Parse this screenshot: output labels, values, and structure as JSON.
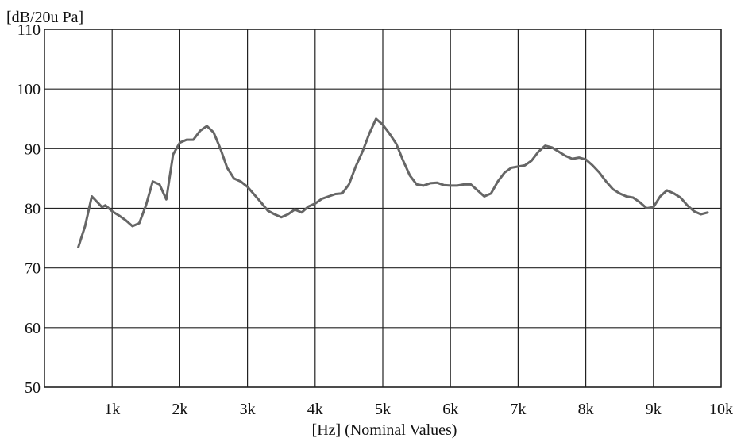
{
  "chart_data": {
    "type": "line",
    "ylabel": "[dB/20u Pa]",
    "xlabel": "[Hz] (Nominal Values)",
    "xlim": [
      0,
      10000
    ],
    "ylim": [
      50,
      110
    ],
    "grid": true,
    "x_ticks": [
      1000,
      2000,
      3000,
      4000,
      5000,
      6000,
      7000,
      8000,
      9000,
      10000
    ],
    "x_tick_labels": [
      "1k",
      "2k",
      "3k",
      "4k",
      "5k",
      "6k",
      "7k",
      "8k",
      "9k",
      "10k"
    ],
    "y_ticks": [
      50,
      60,
      70,
      80,
      90,
      100,
      110
    ],
    "y_tick_labels": [
      "50",
      "60",
      "70",
      "80",
      "90",
      "100",
      "110"
    ],
    "series": [
      {
        "color": "#666666",
        "x": [
          500,
          600,
          700,
          800,
          850,
          900,
          1000,
          1100,
          1200,
          1300,
          1400,
          1500,
          1600,
          1700,
          1800,
          1900,
          2000,
          2100,
          2200,
          2300,
          2400,
          2500,
          2600,
          2700,
          2800,
          2900,
          3000,
          3100,
          3200,
          3300,
          3400,
          3500,
          3600,
          3700,
          3800,
          3900,
          4000,
          4100,
          4200,
          4300,
          4400,
          4500,
          4600,
          4700,
          4800,
          4900,
          5000,
          5100,
          5200,
          5300,
          5400,
          5500,
          5600,
          5700,
          5800,
          5900,
          6000,
          6100,
          6200,
          6300,
          6400,
          6500,
          6600,
          6700,
          6800,
          6900,
          7000,
          7100,
          7200,
          7300,
          7400,
          7500,
          7600,
          7700,
          7800,
          7900,
          8000,
          8100,
          8200,
          8300,
          8400,
          8500,
          8600,
          8700,
          8800,
          8900,
          9000,
          9100,
          9200,
          9300,
          9400,
          9500,
          9600,
          9700,
          9800
        ],
        "y": [
          73.5,
          77,
          82,
          80.8,
          80.2,
          80.5,
          79.5,
          78.8,
          78,
          77,
          77.5,
          80.5,
          84.5,
          84,
          81.5,
          89,
          91,
          91.5,
          91.5,
          93,
          93.8,
          92.7,
          90,
          86.8,
          85,
          84.5,
          83.6,
          82.3,
          81,
          79.6,
          79,
          78.5,
          79,
          79.8,
          79.3,
          80.3,
          80.8,
          81.6,
          82,
          82.4,
          82.5,
          84,
          87,
          89.5,
          92.5,
          95,
          94,
          92.5,
          90.8,
          88,
          85.5,
          84,
          83.8,
          84.2,
          84.3,
          83.9,
          83.8,
          83.8,
          84,
          84,
          83,
          82,
          82.5,
          84.5,
          86,
          86.8,
          87,
          87.2,
          88,
          89.5,
          90.5,
          90.2,
          89.5,
          88.8,
          88.3,
          88.5,
          88.2,
          87.2,
          86,
          84.5,
          83.2,
          82.5,
          82,
          81.8,
          81,
          80,
          80.2,
          82,
          83,
          82.5,
          81.8,
          80.5,
          79.5,
          79,
          79.3
        ]
      }
    ]
  }
}
